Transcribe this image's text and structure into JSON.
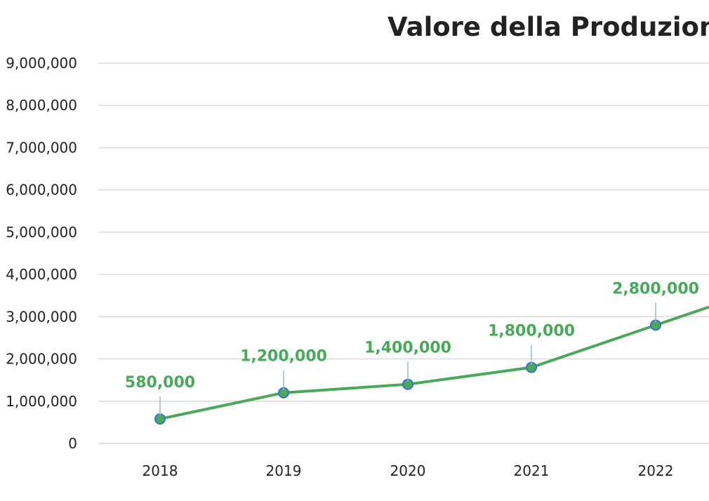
{
  "colors": {
    "line": "#4aa85a",
    "marker_fill": "#4aa85a",
    "marker_stroke": "#3b6fd6",
    "label": "#4aa85a",
    "leader": "#9ab6d6"
  },
  "chart_data": {
    "type": "line",
    "title": "Valore della Produzione",
    "xlabel": "",
    "ylabel": "",
    "categories": [
      "2018",
      "2019",
      "2020",
      "2021",
      "2022"
    ],
    "series": [
      {
        "values": [
          580000,
          1200000,
          1400000,
          1800000,
          2800000
        ],
        "labels": [
          "580,000",
          "1,200,000",
          "1,400,000",
          "1,800,000",
          "2,800,000"
        ]
      }
    ],
    "ylim": [
      0,
      9000000
    ],
    "yticks": [
      "0",
      "1,000,000",
      "2,000,000",
      "3,000,000",
      "4,000,000",
      "5,000,000",
      "6,000,000",
      "7,000,000",
      "8,000,000",
      "9,000,000"
    ],
    "grid": true,
    "legend": "none"
  }
}
